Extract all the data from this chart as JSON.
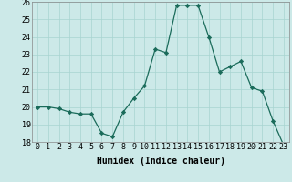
{
  "x": [
    0,
    1,
    2,
    3,
    4,
    5,
    6,
    7,
    8,
    9,
    10,
    11,
    12,
    13,
    14,
    15,
    16,
    17,
    18,
    19,
    20,
    21,
    22,
    23
  ],
  "y": [
    20.0,
    20.0,
    19.9,
    19.7,
    19.6,
    19.6,
    18.5,
    18.3,
    19.7,
    20.5,
    21.2,
    23.3,
    23.1,
    25.8,
    25.8,
    25.8,
    24.0,
    22.0,
    22.3,
    22.6,
    21.1,
    20.9,
    19.2,
    17.8
  ],
  "line_color": "#1a6b5a",
  "marker": "D",
  "marker_size": 2.2,
  "bg_color": "#cce9e8",
  "grid_color": "#a8d4d0",
  "xlabel": "Humidex (Indice chaleur)",
  "ylim": [
    18,
    26
  ],
  "yticks": [
    18,
    19,
    20,
    21,
    22,
    23,
    24,
    25,
    26
  ],
  "xticks": [
    0,
    1,
    2,
    3,
    4,
    5,
    6,
    7,
    8,
    9,
    10,
    11,
    12,
    13,
    14,
    15,
    16,
    17,
    18,
    19,
    20,
    21,
    22,
    23
  ],
  "xlabel_fontsize": 7.0,
  "tick_fontsize": 6.0
}
